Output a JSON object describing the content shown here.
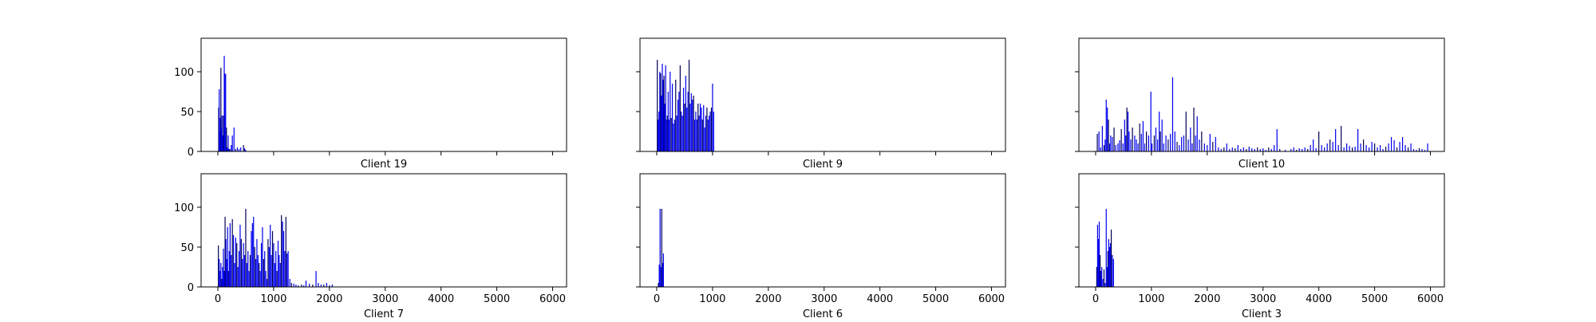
{
  "chart_data": [
    {
      "type": "bar",
      "title": "",
      "xlabel": "Client 19",
      "ylabel": "",
      "xlim": [
        -300,
        6250
      ],
      "ylim": [
        0,
        142
      ],
      "xticks": [
        0,
        1000,
        2000,
        3000,
        4000,
        5000,
        6000
      ],
      "yticks": [
        0,
        50,
        100
      ],
      "show_xtick_labels": false,
      "show_ytick_labels": true,
      "grid": false,
      "bars": [
        [
          15,
          55
        ],
        [
          25,
          78
        ],
        [
          35,
          25
        ],
        [
          45,
          42
        ],
        [
          55,
          105
        ],
        [
          65,
          30
        ],
        [
          75,
          45
        ],
        [
          85,
          20
        ],
        [
          100,
          45
        ],
        [
          115,
          120
        ],
        [
          125,
          98
        ],
        [
          140,
          97
        ],
        [
          155,
          30
        ],
        [
          170,
          5
        ],
        [
          185,
          20
        ],
        [
          200,
          3
        ],
        [
          215,
          3
        ],
        [
          240,
          8
        ],
        [
          260,
          20
        ],
        [
          290,
          30
        ],
        [
          320,
          3
        ],
        [
          350,
          5
        ],
        [
          380,
          3
        ],
        [
          410,
          5
        ],
        [
          460,
          8
        ],
        [
          480,
          4
        ],
        [
          500,
          2
        ]
      ]
    },
    {
      "type": "bar",
      "title": "",
      "xlabel": "Client 9",
      "ylabel": "",
      "xlim": [
        -300,
        6250
      ],
      "ylim": [
        0,
        142
      ],
      "xticks": [
        0,
        1000,
        2000,
        3000,
        4000,
        5000,
        6000
      ],
      "yticks": [
        0,
        50,
        100
      ],
      "show_xtick_labels": false,
      "show_ytick_labels": false,
      "grid": false,
      "bars": [
        [
          10,
          115
        ],
        [
          25,
          40
        ],
        [
          40,
          50
        ],
        [
          55,
          100
        ],
        [
          70,
          98
        ],
        [
          85,
          70
        ],
        [
          100,
          110
        ],
        [
          115,
          90
        ],
        [
          130,
          95
        ],
        [
          145,
          60
        ],
        [
          160,
          108
        ],
        [
          175,
          40
        ],
        [
          190,
          45
        ],
        [
          205,
          75
        ],
        [
          220,
          40
        ],
        [
          240,
          100
        ],
        [
          260,
          42
        ],
        [
          280,
          85
        ],
        [
          300,
          35
        ],
        [
          320,
          40
        ],
        [
          340,
          90
        ],
        [
          360,
          45
        ],
        [
          380,
          65
        ],
        [
          400,
          75
        ],
        [
          420,
          108
        ],
        [
          440,
          50
        ],
        [
          460,
          45
        ],
        [
          480,
          80
        ],
        [
          500,
          60
        ],
        [
          520,
          95
        ],
        [
          540,
          55
        ],
        [
          560,
          75
        ],
        [
          580,
          115
        ],
        [
          600,
          60
        ],
        [
          620,
          73
        ],
        [
          640,
          65
        ],
        [
          660,
          70
        ],
        [
          680,
          40
        ],
        [
          700,
          50
        ],
        [
          720,
          40
        ],
        [
          740,
          60
        ],
        [
          760,
          45
        ],
        [
          780,
          60
        ],
        [
          800,
          55
        ],
        [
          820,
          40
        ],
        [
          840,
          58
        ],
        [
          860,
          30
        ],
        [
          880,
          45
        ],
        [
          900,
          55
        ],
        [
          920,
          40
        ],
        [
          940,
          45
        ],
        [
          960,
          50
        ],
        [
          980,
          55
        ],
        [
          1000,
          85
        ],
        [
          1020,
          50
        ]
      ]
    },
    {
      "type": "bar",
      "title": "",
      "xlabel": "Client 10",
      "ylabel": "",
      "xlim": [
        -300,
        6250
      ],
      "ylim": [
        0,
        142
      ],
      "xticks": [
        0,
        1000,
        2000,
        3000,
        4000,
        5000,
        6000
      ],
      "yticks": [
        0,
        50,
        100
      ],
      "show_xtick_labels": false,
      "show_ytick_labels": false,
      "grid": false,
      "bars": [
        [
          30,
          22
        ],
        [
          60,
          25
        ],
        [
          90,
          5
        ],
        [
          120,
          32
        ],
        [
          150,
          8
        ],
        [
          170,
          15
        ],
        [
          190,
          65
        ],
        [
          210,
          55
        ],
        [
          230,
          40
        ],
        [
          250,
          10
        ],
        [
          270,
          20
        ],
        [
          300,
          18
        ],
        [
          330,
          30
        ],
        [
          360,
          8
        ],
        [
          400,
          10
        ],
        [
          430,
          14
        ],
        [
          460,
          28
        ],
        [
          490,
          10
        ],
        [
          520,
          40
        ],
        [
          540,
          20
        ],
        [
          560,
          55
        ],
        [
          580,
          50
        ],
        [
          600,
          25
        ],
        [
          630,
          15
        ],
        [
          660,
          30
        ],
        [
          700,
          20
        ],
        [
          730,
          15
        ],
        [
          760,
          10
        ],
        [
          790,
          35
        ],
        [
          820,
          22
        ],
        [
          850,
          38
        ],
        [
          880,
          10
        ],
        [
          910,
          25
        ],
        [
          950,
          20
        ],
        [
          990,
          75
        ],
        [
          1010,
          10
        ],
        [
          1050,
          20
        ],
        [
          1080,
          30
        ],
        [
          1110,
          15
        ],
        [
          1140,
          50
        ],
        [
          1160,
          25
        ],
        [
          1190,
          40
        ],
        [
          1220,
          10
        ],
        [
          1260,
          20
        ],
        [
          1300,
          15
        ],
        [
          1340,
          22
        ],
        [
          1380,
          93
        ],
        [
          1420,
          25
        ],
        [
          1460,
          12
        ],
        [
          1500,
          8
        ],
        [
          1540,
          18
        ],
        [
          1580,
          20
        ],
        [
          1620,
          50
        ],
        [
          1660,
          15
        ],
        [
          1700,
          30
        ],
        [
          1730,
          10
        ],
        [
          1760,
          55
        ],
        [
          1790,
          20
        ],
        [
          1820,
          44
        ],
        [
          1860,
          15
        ],
        [
          1900,
          25
        ],
        [
          1950,
          10
        ],
        [
          2000,
          8
        ],
        [
          2050,
          22
        ],
        [
          2100,
          12
        ],
        [
          2150,
          18
        ],
        [
          2200,
          5
        ],
        [
          2250,
          3
        ],
        [
          2300,
          5
        ],
        [
          2350,
          10
        ],
        [
          2400,
          3
        ],
        [
          2450,
          5
        ],
        [
          2500,
          4
        ],
        [
          2550,
          8
        ],
        [
          2600,
          3
        ],
        [
          2650,
          5
        ],
        [
          2700,
          3
        ],
        [
          2750,
          6
        ],
        [
          2800,
          4
        ],
        [
          2850,
          3
        ],
        [
          2900,
          5
        ],
        [
          2950,
          3
        ],
        [
          3000,
          4
        ],
        [
          3050,
          2
        ],
        [
          3100,
          5
        ],
        [
          3150,
          3
        ],
        [
          3200,
          8
        ],
        [
          3250,
          28
        ],
        [
          3300,
          3
        ],
        [
          3400,
          2
        ],
        [
          3500,
          3
        ],
        [
          3550,
          5
        ],
        [
          3600,
          2
        ],
        [
          3650,
          4
        ],
        [
          3700,
          3
        ],
        [
          3750,
          5
        ],
        [
          3800,
          3
        ],
        [
          3850,
          8
        ],
        [
          3900,
          15
        ],
        [
          3950,
          4
        ],
        [
          4000,
          25
        ],
        [
          4050,
          8
        ],
        [
          4100,
          5
        ],
        [
          4150,
          10
        ],
        [
          4200,
          15
        ],
        [
          4250,
          12
        ],
        [
          4300,
          28
        ],
        [
          4350,
          8
        ],
        [
          4400,
          32
        ],
        [
          4450,
          5
        ],
        [
          4500,
          10
        ],
        [
          4550,
          7
        ],
        [
          4600,
          5
        ],
        [
          4650,
          6
        ],
        [
          4700,
          28
        ],
        [
          4750,
          10
        ],
        [
          4800,
          15
        ],
        [
          4850,
          8
        ],
        [
          4900,
          5
        ],
        [
          4950,
          12
        ],
        [
          5000,
          10
        ],
        [
          5050,
          5
        ],
        [
          5100,
          8
        ],
        [
          5150,
          3
        ],
        [
          5200,
          6
        ],
        [
          5250,
          10
        ],
        [
          5300,
          18
        ],
        [
          5350,
          14
        ],
        [
          5400,
          5
        ],
        [
          5450,
          12
        ],
        [
          5500,
          18
        ],
        [
          5550,
          8
        ],
        [
          5600,
          5
        ],
        [
          5650,
          10
        ],
        [
          5700,
          3
        ],
        [
          5750,
          2
        ],
        [
          5800,
          4
        ],
        [
          5850,
          3
        ],
        [
          5900,
          2
        ],
        [
          5950,
          10
        ]
      ]
    },
    {
      "type": "bar",
      "title": "",
      "xlabel": "Client 7",
      "ylabel": "",
      "xlim": [
        -300,
        6250
      ],
      "ylim": [
        0,
        142
      ],
      "xticks": [
        0,
        1000,
        2000,
        3000,
        4000,
        5000,
        6000
      ],
      "yticks": [
        0,
        50,
        100
      ],
      "show_xtick_labels": true,
      "show_ytick_labels": true,
      "grid": false,
      "bars": [
        [
          10,
          52
        ],
        [
          25,
          35
        ],
        [
          40,
          20
        ],
        [
          55,
          30
        ],
        [
          70,
          10
        ],
        [
          85,
          25
        ],
        [
          100,
          48
        ],
        [
          115,
          20
        ],
        [
          130,
          88
        ],
        [
          145,
          60
        ],
        [
          160,
          35
        ],
        [
          175,
          75
        ],
        [
          190,
          20
        ],
        [
          205,
          45
        ],
        [
          220,
          80
        ],
        [
          240,
          40
        ],
        [
          260,
          85
        ],
        [
          280,
          65
        ],
        [
          300,
          30
        ],
        [
          320,
          62
        ],
        [
          340,
          55
        ],
        [
          360,
          25
        ],
        [
          380,
          45
        ],
        [
          400,
          78
        ],
        [
          420,
          60
        ],
        [
          440,
          35
        ],
        [
          460,
          55
        ],
        [
          480,
          40
        ],
        [
          500,
          98
        ],
        [
          520,
          30
        ],
        [
          540,
          45
        ],
        [
          560,
          20
        ],
        [
          580,
          40
        ],
        [
          600,
          70
        ],
        [
          620,
          80
        ],
        [
          640,
          88
        ],
        [
          660,
          50
        ],
        [
          680,
          35
        ],
        [
          700,
          60
        ],
        [
          720,
          40
        ],
        [
          740,
          30
        ],
        [
          760,
          20
        ],
        [
          780,
          55
        ],
        [
          800,
          75
        ],
        [
          820,
          35
        ],
        [
          840,
          45
        ],
        [
          860,
          20
        ],
        [
          880,
          10
        ],
        [
          900,
          60
        ],
        [
          920,
          50
        ],
        [
          940,
          78
        ],
        [
          960,
          40
        ],
        [
          980,
          70
        ],
        [
          1000,
          55
        ],
        [
          1020,
          30
        ],
        [
          1040,
          45
        ],
        [
          1060,
          20
        ],
        [
          1080,
          58
        ],
        [
          1100,
          40
        ],
        [
          1120,
          30
        ],
        [
          1140,
          90
        ],
        [
          1160,
          82
        ],
        [
          1180,
          70
        ],
        [
          1200,
          45
        ],
        [
          1220,
          88
        ],
        [
          1240,
          42
        ],
        [
          1260,
          45
        ],
        [
          1290,
          10
        ],
        [
          1320,
          5
        ],
        [
          1360,
          4
        ],
        [
          1400,
          3
        ],
        [
          1440,
          2
        ],
        [
          1500,
          3
        ],
        [
          1540,
          2
        ],
        [
          1580,
          8
        ],
        [
          1640,
          4
        ],
        [
          1700,
          3
        ],
        [
          1760,
          20
        ],
        [
          1800,
          5
        ],
        [
          1850,
          3
        ],
        [
          1900,
          3
        ],
        [
          1950,
          5
        ],
        [
          2000,
          2
        ],
        [
          2050,
          3
        ]
      ]
    },
    {
      "type": "bar",
      "title": "",
      "xlabel": "Client 6",
      "ylabel": "",
      "xlim": [
        -300,
        6250
      ],
      "ylim": [
        0,
        142
      ],
      "xticks": [
        0,
        1000,
        2000,
        3000,
        4000,
        5000,
        6000
      ],
      "yticks": [
        0,
        50,
        100
      ],
      "show_xtick_labels": true,
      "show_ytick_labels": false,
      "grid": false,
      "bars": [
        [
          30,
          5
        ],
        [
          45,
          28
        ],
        [
          60,
          98
        ],
        [
          75,
          25
        ],
        [
          90,
          98
        ],
        [
          105,
          30
        ],
        [
          120,
          42
        ]
      ]
    },
    {
      "type": "bar",
      "title": "",
      "xlabel": "Client 3",
      "ylabel": "",
      "xlim": [
        -300,
        6250
      ],
      "ylim": [
        0,
        142
      ],
      "xticks": [
        0,
        1000,
        2000,
        3000,
        4000,
        5000,
        6000
      ],
      "yticks": [
        0,
        50,
        100
      ],
      "show_xtick_labels": true,
      "show_ytick_labels": false,
      "grid": false,
      "bars": [
        [
          20,
          25
        ],
        [
          35,
          78
        ],
        [
          50,
          60
        ],
        [
          65,
          82
        ],
        [
          80,
          40
        ],
        [
          95,
          20
        ],
        [
          110,
          25
        ],
        [
          130,
          10
        ],
        [
          150,
          22
        ],
        [
          170,
          5
        ],
        [
          190,
          98
        ],
        [
          205,
          25
        ],
        [
          220,
          45
        ],
        [
          235,
          60
        ],
        [
          250,
          50
        ],
        [
          265,
          55
        ],
        [
          280,
          72
        ],
        [
          300,
          40
        ],
        [
          320,
          35
        ]
      ]
    }
  ]
}
